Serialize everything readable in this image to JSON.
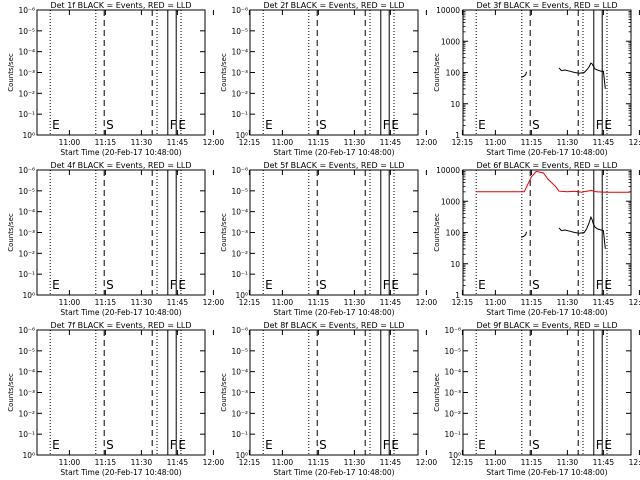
{
  "x_ticks": [
    "11:00",
    "11:15",
    "11:30",
    "11:45",
    "12:00",
    "12:15"
  ],
  "x_label": "Start Time (20-Feb-17 10:48:00)",
  "y_label": "Counts/sec",
  "y_ticks_empty": [
    "10⁰",
    "10⁻¹",
    "10⁻²",
    "10⁻³",
    "10⁻⁴",
    "10⁻⁵",
    "10⁻⁶"
  ],
  "y_ticks_log": [
    "1",
    "10",
    "100",
    "1000",
    "10000"
  ],
  "markers": {
    "E": "E",
    "S": "S",
    "F": "F",
    "E2": "E"
  },
  "colors": {
    "events": "#000000",
    "lld": "#e00000"
  },
  "chart_data": [
    {
      "title": "Det 1f BLACK = Events, RED = LLD",
      "type": "line",
      "scale": "empty",
      "series": []
    },
    {
      "title": "Det 2f BLACK = Events, RED = LLD",
      "type": "line",
      "scale": "empty",
      "series": []
    },
    {
      "title": "Det 3f BLACK = Events, RED = LLD",
      "type": "line",
      "scale": "log",
      "ylim": [
        1,
        10000
      ],
      "series": [
        {
          "color": "events",
          "segments": [
            [
              [
                10.75,
                70
              ],
              [
                11.8,
                75
              ],
              [
                12.2,
                80
              ],
              [
                12.6,
                85
              ],
              [
                13.0,
                105
              ]
            ],
            [
              [
                26.5,
                140
              ],
              [
                27.5,
                115
              ],
              [
                29.0,
                120
              ],
              [
                31.0,
                110
              ],
              [
                33.0,
                100
              ],
              [
                35.0,
                95
              ],
              [
                37.0,
                100
              ],
              [
                38.0,
                120
              ],
              [
                39.0,
                150
              ],
              [
                39.8,
                200
              ],
              [
                40.3,
                190
              ],
              [
                40.8,
                160
              ],
              [
                41.5,
                130
              ],
              [
                42.5,
                120
              ],
              [
                44.0,
                110
              ],
              [
                45.0,
                110
              ],
              [
                45.8,
                30
              ]
            ]
          ]
        }
      ]
    },
    {
      "title": "Det 4f BLACK = Events, RED = LLD",
      "type": "line",
      "scale": "empty",
      "series": []
    },
    {
      "title": "Det 5f BLACK = Events, RED = LLD",
      "type": "line",
      "scale": "empty",
      "series": []
    },
    {
      "title": "Det 6f BLACK = Events, RED = LLD",
      "type": "line",
      "scale": "log",
      "ylim": [
        1,
        10000
      ],
      "series": [
        {
          "color": "events",
          "segments": [
            [
              [
                10.75,
                70
              ],
              [
                11.8,
                75
              ],
              [
                12.2,
                80
              ],
              [
                12.6,
                85
              ],
              [
                13.0,
                105
              ]
            ],
            [
              [
                26.5,
                140
              ],
              [
                27.5,
                115
              ],
              [
                29.0,
                120
              ],
              [
                31.0,
                110
              ],
              [
                33.0,
                100
              ],
              [
                35.0,
                95
              ],
              [
                37.0,
                100
              ],
              [
                38.0,
                130
              ],
              [
                39.0,
                200
              ],
              [
                39.8,
                310
              ],
              [
                40.3,
                260
              ],
              [
                40.8,
                190
              ],
              [
                41.5,
                150
              ],
              [
                42.5,
                130
              ],
              [
                44.0,
                120
              ],
              [
                45.0,
                115
              ],
              [
                45.8,
                30
              ]
            ]
          ]
        },
        {
          "color": "lld",
          "segments": [
            [
              [
                -8.0,
                2000
              ],
              [
                12.0,
                2000
              ],
              [
                15.0,
                6000
              ],
              [
                17.0,
                9000
              ],
              [
                20.0,
                8000
              ],
              [
                22.0,
                5000
              ],
              [
                25.0,
                3000
              ],
              [
                26.5,
                2100
              ],
              [
                30.0,
                2000
              ],
              [
                33.0,
                2100
              ],
              [
                36.0,
                1950
              ],
              [
                38.0,
                2100
              ],
              [
                40.0,
                2200
              ],
              [
                42.0,
                2000
              ],
              [
                46.0,
                1950
              ],
              [
                56.0,
                1950
              ]
            ]
          ]
        }
      ]
    },
    {
      "title": "Det 7f BLACK = Events, RED = LLD",
      "type": "line",
      "scale": "empty",
      "series": []
    },
    {
      "title": "Det 8f BLACK = Events, RED = LLD",
      "type": "line",
      "scale": "empty",
      "series": []
    },
    {
      "title": "Det 9f BLACK = Events, RED = LLD",
      "type": "line",
      "scale": "empty",
      "series": []
    }
  ]
}
